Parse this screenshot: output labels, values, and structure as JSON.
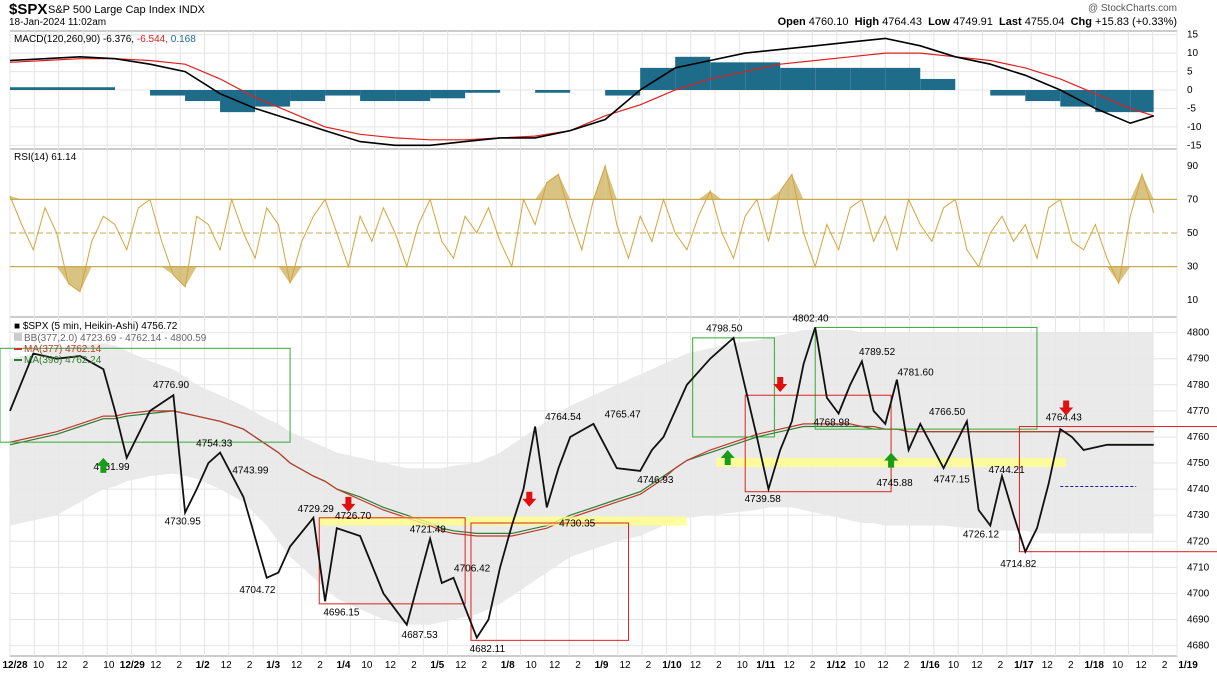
{
  "header": {
    "symbol": "$SPX",
    "name": "S&P 500 Large Cap Index",
    "exchange": "INDX",
    "date": "18-Jan-2024 11:02am",
    "open_label": "Open",
    "open": "4760.10",
    "high_label": "High",
    "high": "4764.43",
    "low_label": "Low",
    "low": "4749.91",
    "last_label": "Last",
    "last": "4755.04",
    "chg_label": "Chg",
    "chg": "+15.83 (+0.33%)",
    "watermark": "@ StockCharts.com"
  },
  "colors": {
    "macd_line": "#000000",
    "signal_line": "#e02020",
    "histogram": "#1f6b8a",
    "rsi_line": "#d4a43c",
    "rsi_fill": "#c9a94e",
    "bb_band": "#e8e8e8",
    "ma377": "#c0392b",
    "ma390": "#2e7d32",
    "box_green": "#33aa33",
    "box_red": "#dd2222",
    "highlight": "#ffff88",
    "arrow_up": "#1a9c1a",
    "arrow_down": "#e01010"
  },
  "chart_data": [
    {
      "type": "line",
      "panel": "MACD",
      "legend": [
        "MACD(120,260,90)",
        "-6.376",
        "-6.544",
        "0.168"
      ],
      "ylim": [
        -16,
        16
      ],
      "y_ticks": [
        15,
        10,
        5,
        0,
        -5,
        -10,
        -15
      ],
      "x": [
        0,
        3,
        6,
        9,
        12,
        15,
        18,
        21,
        24,
        27,
        30,
        33,
        36,
        39,
        42,
        45,
        48,
        51,
        54,
        57,
        60,
        63,
        66,
        69,
        72,
        75,
        78,
        81,
        84,
        87,
        90,
        93,
        96,
        98
      ],
      "series": [
        {
          "name": "MACD",
          "values": [
            8,
            8.5,
            9,
            8.5,
            7,
            5,
            -1,
            -5,
            -8,
            -11,
            -14,
            -15,
            -15,
            -14,
            -13,
            -13,
            -11,
            -8,
            0,
            6,
            8,
            10,
            11,
            12,
            13,
            14,
            12,
            9,
            7,
            4,
            0,
            -5,
            -9,
            -7
          ]
        },
        {
          "name": "Signal",
          "values": [
            7.5,
            8,
            8.5,
            8.5,
            8,
            7,
            3,
            -2,
            -6,
            -10,
            -12,
            -13,
            -13.5,
            -13.5,
            -13,
            -12.5,
            -11,
            -7,
            -4,
            0,
            3,
            5,
            7,
            8,
            9,
            10,
            10,
            9,
            8,
            6,
            3,
            -1,
            -5,
            -7
          ]
        }
      ]
    },
    {
      "type": "line",
      "panel": "RSI",
      "legend": "RSI(14) 61.14",
      "ylim": [
        0,
        100
      ],
      "y_ticks": [
        90,
        70,
        50,
        30,
        10
      ],
      "levels": [
        70,
        50,
        30
      ],
      "x": [
        0,
        1,
        2,
        3,
        4,
        5,
        6,
        7,
        8,
        9,
        10,
        11,
        12,
        13,
        14,
        15,
        16,
        17,
        18,
        19,
        20,
        21,
        22,
        23,
        24,
        25,
        26,
        27,
        28,
        29,
        30,
        31,
        32,
        33,
        34,
        35,
        36,
        37,
        38,
        39,
        40,
        41,
        42,
        43,
        44,
        45,
        46,
        47,
        48,
        49,
        50,
        51,
        52,
        53,
        54,
        55,
        56,
        57,
        58,
        59,
        60,
        61,
        62,
        63,
        64,
        65,
        66,
        67,
        68,
        69,
        70,
        71,
        72,
        73,
        74,
        75,
        76,
        77,
        78,
        79,
        80,
        81,
        82,
        83,
        84,
        85,
        86,
        87,
        88,
        89,
        90,
        91,
        92,
        93,
        94,
        95,
        96,
        97,
        98
      ],
      "values": [
        72,
        55,
        40,
        65,
        50,
        20,
        15,
        45,
        60,
        55,
        40,
        65,
        70,
        45,
        25,
        18,
        60,
        55,
        40,
        70,
        50,
        35,
        65,
        55,
        20,
        45,
        60,
        70,
        50,
        30,
        60,
        45,
        65,
        50,
        30,
        55,
        70,
        45,
        35,
        60,
        50,
        65,
        45,
        30,
        70,
        55,
        80,
        85,
        60,
        40,
        70,
        90,
        55,
        35,
        60,
        45,
        70,
        50,
        40,
        60,
        75,
        50,
        35,
        60,
        70,
        45,
        75,
        85,
        50,
        30,
        55,
        40,
        65,
        70,
        45,
        60,
        40,
        70,
        55,
        45,
        65,
        70,
        40,
        30,
        50,
        60,
        45,
        55,
        35,
        65,
        70,
        45,
        40,
        55,
        35,
        20,
        60,
        85,
        62
      ]
    },
    {
      "type": "line",
      "panel": "Price",
      "legend": [
        "$SPX (5 min, Heikin-Ashi) 4756.72",
        "BB(377,2.0) 4723.69 - 4762.14 - 4800.59",
        "MA(377) 4762.14",
        "MA(390) 4762.24"
      ],
      "ylim": [
        4676,
        4806
      ],
      "y_ticks": [
        4800,
        4790,
        4780,
        4770,
        4760,
        4750,
        4740,
        4730,
        4720,
        4710,
        4700,
        4690,
        4680
      ],
      "x": [
        0,
        2,
        4,
        6,
        8,
        9,
        10,
        12,
        14,
        15,
        16,
        17,
        18,
        20,
        22,
        23,
        24,
        26,
        27,
        28,
        30,
        32,
        34,
        36,
        37,
        38,
        40,
        41,
        42,
        43,
        44,
        45,
        46,
        47,
        48,
        50,
        52,
        54,
        55,
        56,
        57,
        58,
        60,
        62,
        64,
        65,
        66,
        67,
        68,
        69,
        70,
        71,
        72,
        73,
        74,
        75,
        76,
        77,
        78,
        80,
        82,
        83,
        84,
        85,
        86,
        87,
        88,
        89,
        90,
        91,
        92,
        93,
        94,
        95,
        96,
        97,
        98
      ],
      "series": [
        {
          "name": "$SPX",
          "values": [
            4770,
            4792,
            4790,
            4791,
            4786,
            4770,
            4752,
            4770,
            4776,
            4731,
            4740,
            4750,
            4754,
            4737,
            4706,
            4708,
            4718,
            4729,
            4697,
            4725,
            4722,
            4700,
            4688,
            4721,
            4704,
            4706,
            4683,
            4690,
            4710,
            4726,
            4740,
            4764,
            4733,
            4748,
            4760,
            4765,
            4748,
            4747,
            4755,
            4760,
            4770,
            4780,
            4790,
            4798,
            4760,
            4740,
            4755,
            4766,
            4788,
            4802,
            4775,
            4769,
            4780,
            4789,
            4770,
            4765,
            4782,
            4755,
            4765,
            4748,
            4766,
            4732,
            4726,
            4745,
            4730,
            4716,
            4725,
            4742,
            4763,
            4760,
            4755,
            4756,
            4757,
            4757,
            4757,
            4757,
            4757
          ]
        },
        {
          "name": "MA(377)",
          "values": [
            4758,
            4760,
            4762,
            4765,
            4768,
            4768,
            4769,
            4770,
            4770,
            4769,
            4768,
            4767,
            4766,
            4763,
            4757,
            4754,
            4750,
            4745,
            4743,
            4740,
            4736,
            4732,
            4729,
            4726,
            4724,
            4723,
            4722,
            4722,
            4722,
            4722,
            4723,
            4724,
            4725,
            4727,
            4729,
            4732,
            4735,
            4738,
            4741,
            4744,
            4748,
            4751,
            4755,
            4758,
            4761,
            4762,
            4763,
            4764,
            4765,
            4765,
            4765,
            4765,
            4765,
            4764,
            4764,
            4763,
            4763,
            4762,
            4762,
            4762,
            4762,
            4762,
            4762,
            4762,
            4762,
            4762,
            4762,
            4762,
            4762,
            4762,
            4762,
            4762,
            4762,
            4762,
            4762,
            4762,
            4762
          ]
        },
        {
          "name": "MA(390)",
          "values": [
            4757,
            4759,
            4761,
            4764,
            4767,
            4767,
            4768,
            4769,
            4770,
            4769,
            4768,
            4767,
            4766,
            4763,
            4757,
            4754,
            4750,
            4745,
            4743,
            4740,
            4737,
            4733,
            4730,
            4727,
            4725,
            4724,
            4723,
            4723,
            4723,
            4723,
            4724,
            4725,
            4726,
            4728,
            4730,
            4733,
            4736,
            4739,
            4742,
            4745,
            4748,
            4751,
            4754,
            4757,
            4760,
            4761,
            4762,
            4763,
            4764,
            4764,
            4764,
            4764,
            4764,
            4764,
            4763,
            4763,
            4763,
            4762,
            4762,
            4762,
            4762,
            4762,
            4762,
            4762,
            4762,
            4762,
            4762,
            4762,
            4762,
            4762,
            4762,
            4762,
            4762,
            4762,
            4762,
            4762,
            4762
          ]
        }
      ],
      "bb_upper": [
        4790,
        4792,
        4794,
        4795,
        4796,
        4795,
        4793,
        4789,
        4786,
        4783,
        4780,
        4778,
        4776,
        4772,
        4767,
        4765,
        4762,
        4758,
        4756,
        4754,
        4752,
        4750,
        4748,
        4748,
        4748,
        4749,
        4750,
        4752,
        4754,
        4757,
        4760,
        4763,
        4766,
        4769,
        4772,
        4776,
        4780,
        4784,
        4786,
        4788,
        4790,
        4792,
        4794,
        4796,
        4797,
        4798,
        4799,
        4800,
        4801,
        4801,
        4801,
        4801,
        4801,
        4800,
        4800,
        4800,
        4800,
        4800,
        4800,
        4800,
        4800,
        4800,
        4800,
        4800,
        4800,
        4800,
        4800,
        4800,
        4800,
        4800,
        4800,
        4800,
        4800,
        4800,
        4800,
        4800,
        4800
      ],
      "bb_lower": [
        4726,
        4728,
        4730,
        4735,
        4740,
        4741,
        4743,
        4745,
        4746,
        4745,
        4744,
        4742,
        4740,
        4735,
        4726,
        4720,
        4714,
        4706,
        4702,
        4698,
        4694,
        4690,
        4688,
        4688,
        4689,
        4690,
        4692,
        4694,
        4696,
        4699,
        4702,
        4705,
        4708,
        4711,
        4714,
        4717,
        4720,
        4722,
        4724,
        4726,
        4728,
        4729,
        4730,
        4731,
        4732,
        4733,
        4733,
        4733,
        4732,
        4731,
        4730,
        4729,
        4728,
        4727,
        4727,
        4726,
        4726,
        4726,
        4726,
        4726,
        4725,
        4725,
        4724,
        4724,
        4724,
        4724,
        4723,
        4723,
        4723,
        4723,
        4723,
        4723,
        4723,
        4723,
        4723,
        4723,
        4723
      ],
      "annotations": [
        "4751.99",
        "4776.90",
        "4754.33",
        "4743.99",
        "4730.95",
        "4704.72",
        "4729.29",
        "4726.70",
        "4721.49",
        "4696.15",
        "4687.53",
        "4706.42",
        "4682.11",
        "4764.54",
        "4765.47",
        "4730.35",
        "4746.93",
        "4798.50",
        "4739.58",
        "4802.40",
        "4768.98",
        "4789.52",
        "4781.60",
        "4766.50",
        "4744.21",
        "4745.88",
        "4747.15",
        "4726.12",
        "4714.82",
        "4764.43"
      ]
    }
  ],
  "x_axis": {
    "ticks": [
      "12/28",
      "10",
      "12",
      "2",
      "10",
      "12/29",
      "12",
      "2",
      "1/2",
      "12",
      "2",
      "1/3",
      "12",
      "2",
      "1/4",
      "10",
      "12",
      "2",
      "1/5",
      "12",
      "2",
      "1/8",
      "10",
      "12",
      "2",
      "1/9",
      "12",
      "2",
      "1/10",
      "12",
      "2",
      "10",
      "1/11",
      "12",
      "2",
      "1/12",
      "10",
      "12",
      "2",
      "1/16",
      "10",
      "12",
      "2",
      "1/17",
      "12",
      "2",
      "1/18",
      "10",
      "12",
      "2",
      "1/19"
    ]
  }
}
